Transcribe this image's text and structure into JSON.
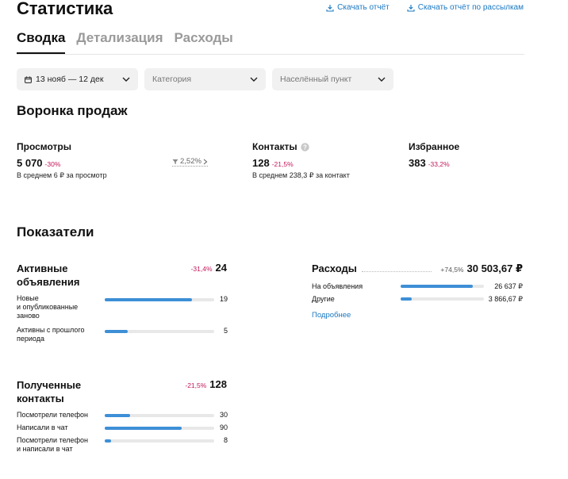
{
  "header": {
    "title": "Статистика",
    "download_report": "Скачать отчёт",
    "download_mailing": "Скачать отчёт по рассылкам"
  },
  "tabs": [
    {
      "label": "Сводка",
      "active": true
    },
    {
      "label": "Детализация",
      "active": false
    },
    {
      "label": "Расходы",
      "active": false
    }
  ],
  "filters": {
    "date": "13 нояб — 12 дек",
    "category": "Категория",
    "city": "Населённый пункт"
  },
  "funnel": {
    "title": "Воронка продаж",
    "views": {
      "label": "Просмотры",
      "value": "5 070",
      "change": "-30%",
      "sub": "В среднем 6 ₽ за просмотр"
    },
    "conversion": "2,52%",
    "contacts": {
      "label": "Контакты",
      "value": "128",
      "change": "-21,5%",
      "sub": "В среднем 238,3 ₽ за контакт"
    },
    "favorites": {
      "label": "Избранное",
      "value": "383",
      "change": "-33,2%"
    }
  },
  "indicators": {
    "title": "Показатели",
    "active_ads": {
      "title_line1": "Активные",
      "title_line2": "объявления",
      "change": "-31,4%",
      "total": "24",
      "rows": [
        {
          "label_lines": [
            "Новые",
            "и опубликованные",
            "заново"
          ],
          "value": "19",
          "fraction": 0.8
        },
        {
          "label_lines": [
            "Активны с прошлого",
            "периода"
          ],
          "value": "5",
          "fraction": 0.21
        }
      ]
    },
    "expenses": {
      "title": "Расходы",
      "change": "+74,5%",
      "total": "30 503,67 ₽",
      "rows": [
        {
          "label": "На объявления",
          "value": "26 637 ₽",
          "fraction": 0.87
        },
        {
          "label": "Другие",
          "value": "3 866,67 ₽",
          "fraction": 0.13
        }
      ],
      "more": "Подробнее"
    },
    "contacts": {
      "title_line1": "Полученные",
      "title_line2": "контакты",
      "change": "-21,5%",
      "total": "128",
      "rows": [
        {
          "label_lines": [
            "Посмотрели телефон"
          ],
          "value": "30",
          "fraction": 0.23
        },
        {
          "label_lines": [
            "Написали в чат"
          ],
          "value": "90",
          "fraction": 0.7
        },
        {
          "label_lines": [
            "Посмотрели телефон",
            "и написали в чат"
          ],
          "value": "8",
          "fraction": 0.06
        }
      ]
    }
  },
  "colors": {
    "accent": "#1a78c2",
    "bar": "#3d8fd6",
    "negative": "#c2185b"
  }
}
